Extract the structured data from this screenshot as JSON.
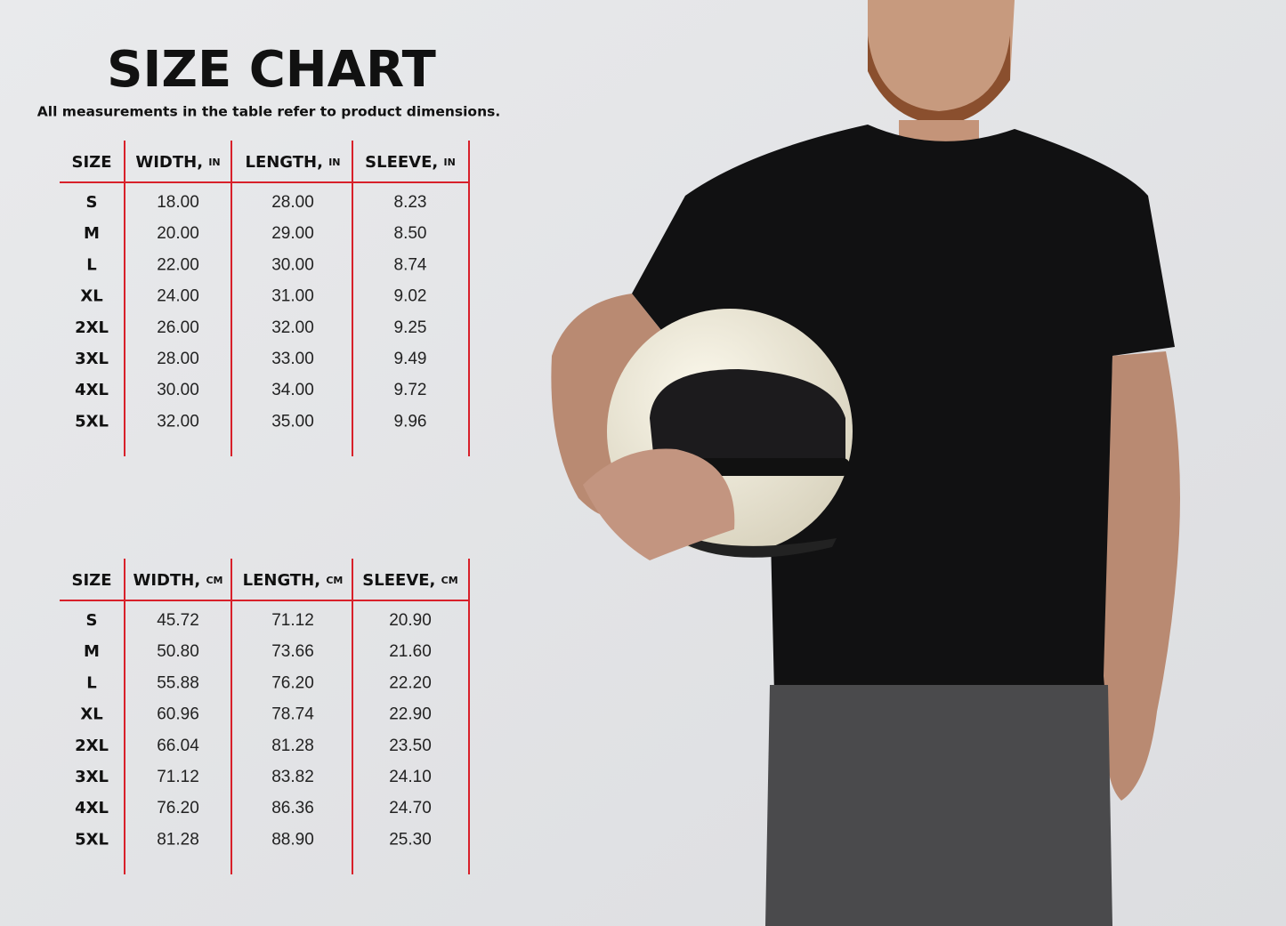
{
  "header": {
    "title": "SIZE CHART",
    "subtitle": "All measurements in the table refer to product dimensions."
  },
  "tables": [
    {
      "headers": [
        {
          "label": "SIZE"
        },
        {
          "label": "WIDTH,",
          "unit": "IN"
        },
        {
          "label": "LENGTH,",
          "unit": "IN"
        },
        {
          "label": "SLEEVE,",
          "unit": "IN"
        }
      ],
      "rows": [
        [
          "S",
          "18.00",
          "28.00",
          "8.23"
        ],
        [
          "M",
          "20.00",
          "29.00",
          "8.50"
        ],
        [
          "L",
          "22.00",
          "30.00",
          "8.74"
        ],
        [
          "XL",
          "24.00",
          "31.00",
          "9.02"
        ],
        [
          "2XL",
          "26.00",
          "32.00",
          "9.25"
        ],
        [
          "3XL",
          "28.00",
          "33.00",
          "9.49"
        ],
        [
          "4XL",
          "30.00",
          "34.00",
          "9.72"
        ],
        [
          "5XL",
          "32.00",
          "35.00",
          "9.96"
        ]
      ]
    },
    {
      "headers": [
        {
          "label": "SIZE"
        },
        {
          "label": "WIDTH,",
          "unit": "CM"
        },
        {
          "label": "LENGTH,",
          "unit": "CM"
        },
        {
          "label": "SLEEVE,",
          "unit": "CM"
        }
      ],
      "rows": [
        [
          "S",
          "45.72",
          "71.12",
          "20.90"
        ],
        [
          "M",
          "50.80",
          "73.66",
          "21.60"
        ],
        [
          "L",
          "55.88",
          "76.20",
          "22.20"
        ],
        [
          "XL",
          "60.96",
          "78.74",
          "22.90"
        ],
        [
          "2XL",
          "66.04",
          "81.28",
          "23.50"
        ],
        [
          "3XL",
          "71.12",
          "83.82",
          "24.10"
        ],
        [
          "4XL",
          "76.20",
          "86.36",
          "24.70"
        ],
        [
          "5XL",
          "81.28",
          "88.90",
          "25.30"
        ]
      ]
    }
  ]
}
